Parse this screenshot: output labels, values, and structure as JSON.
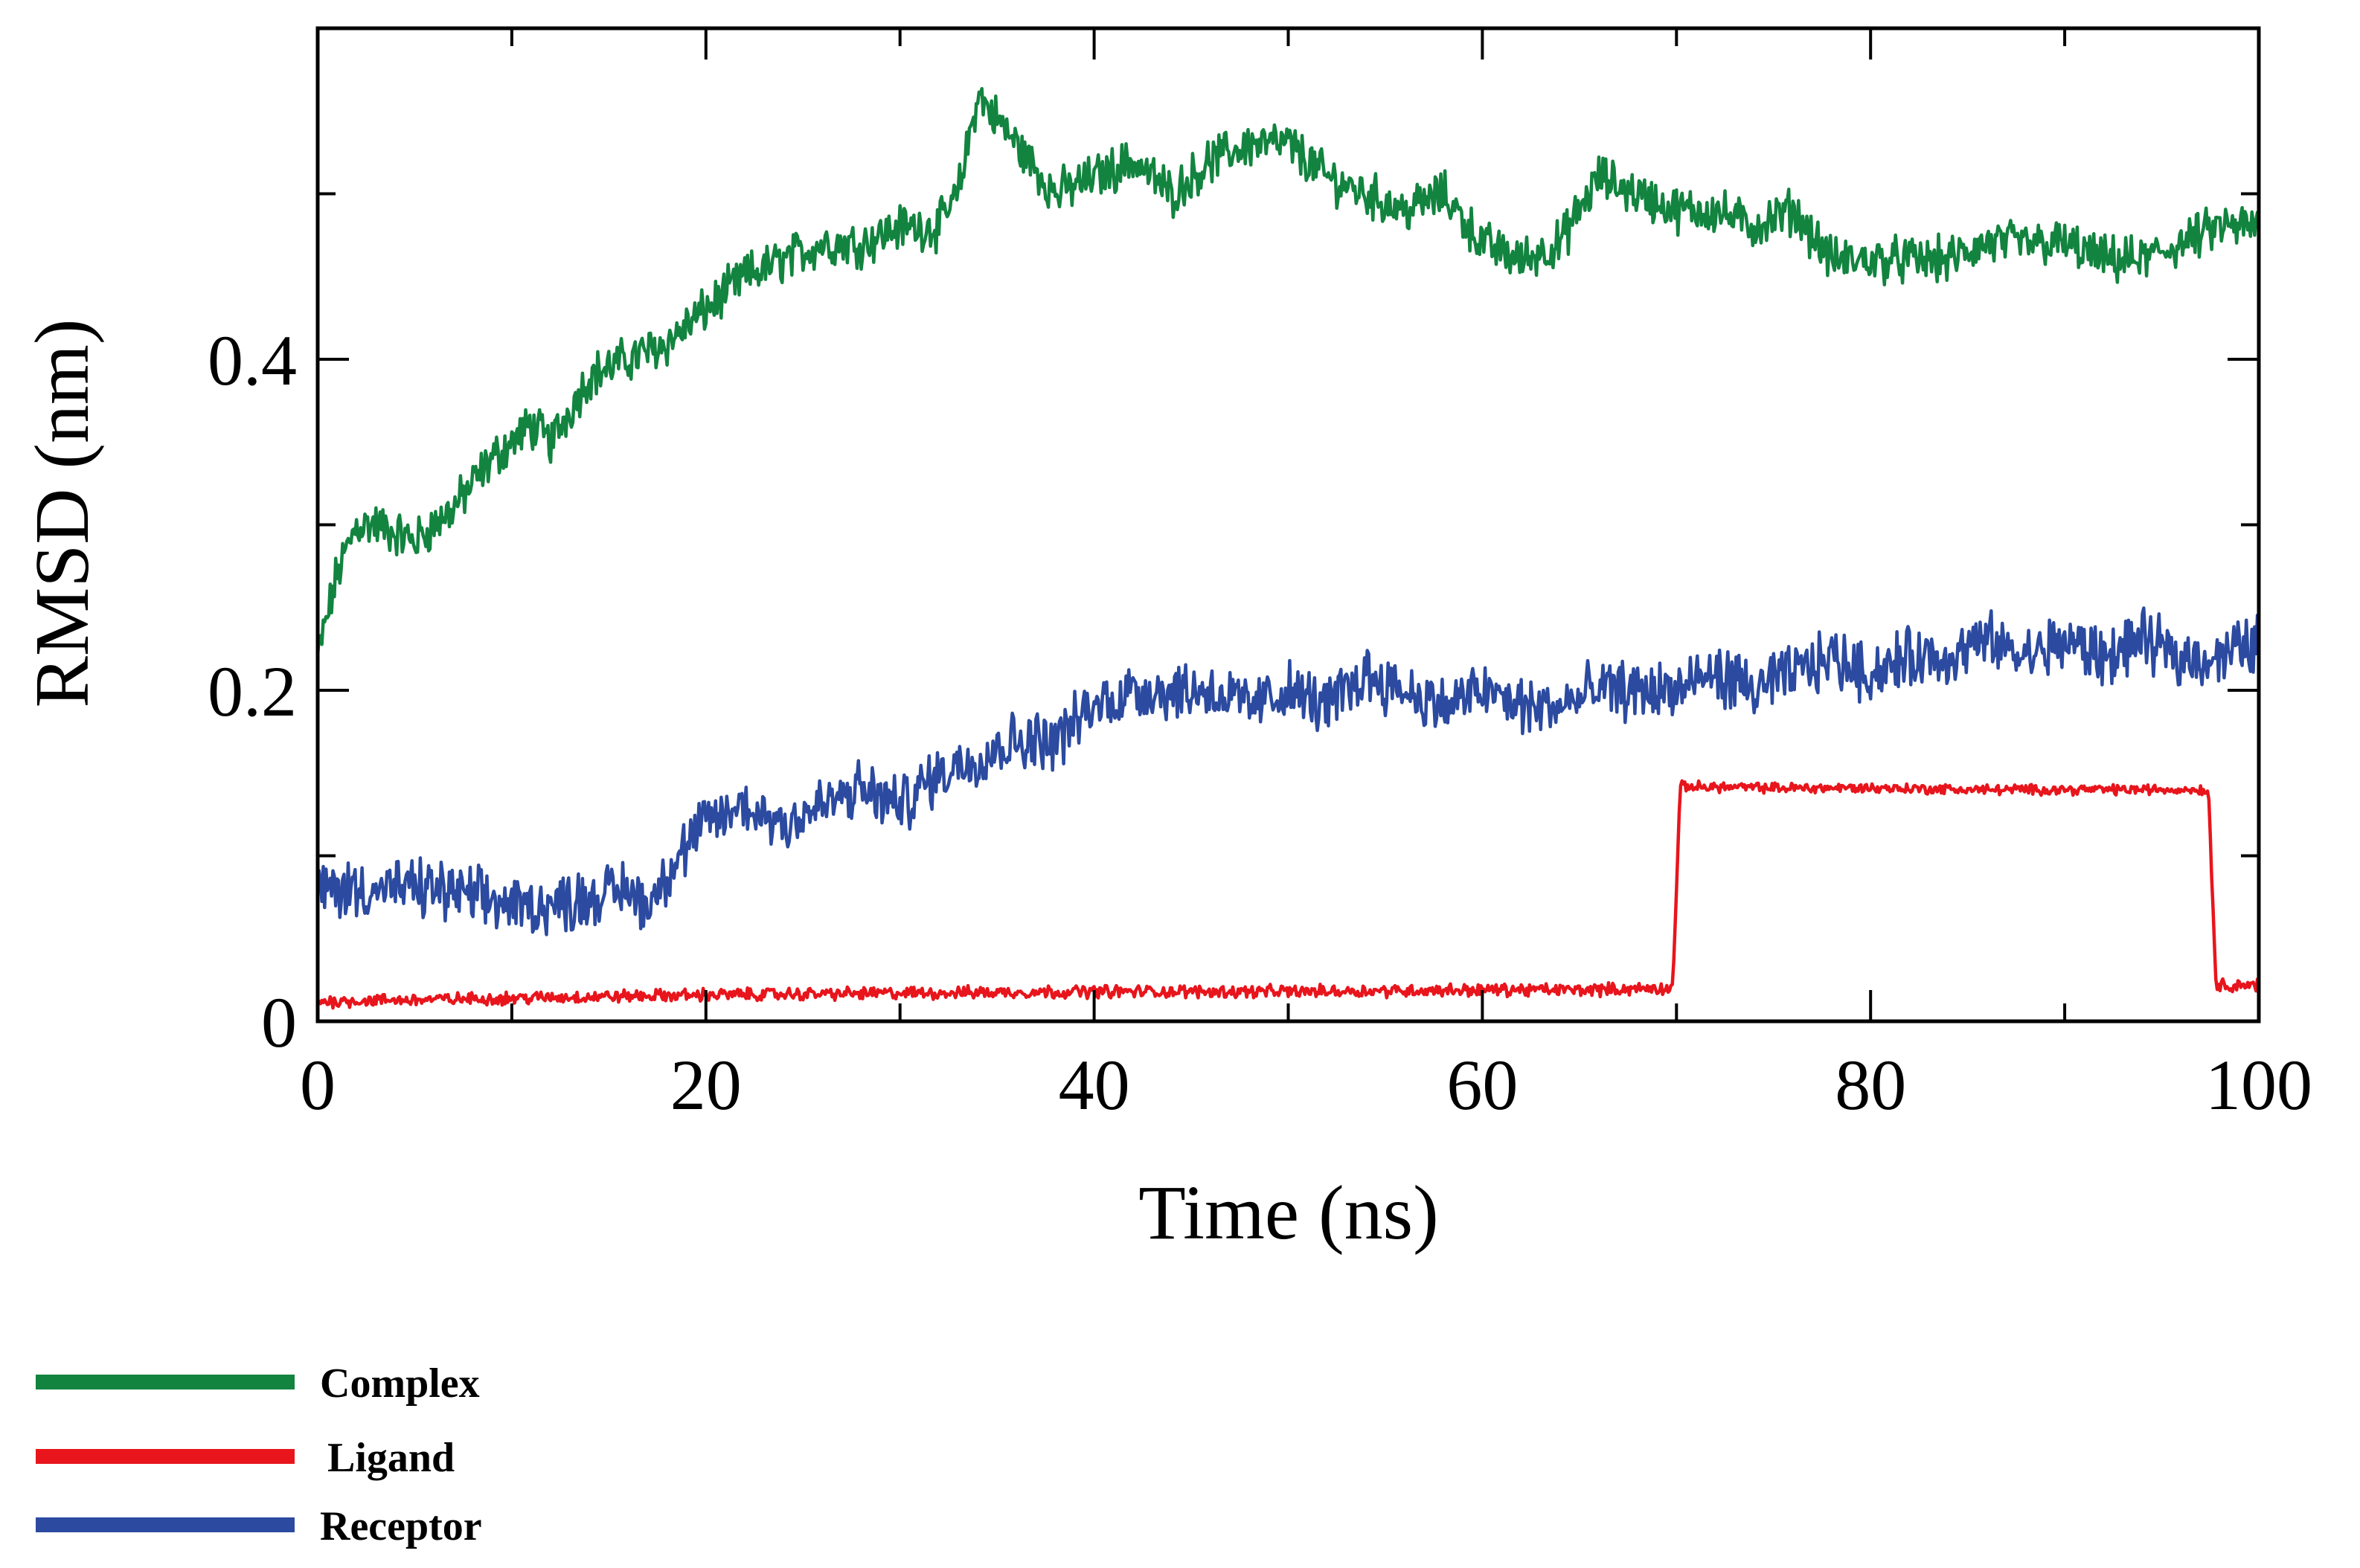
{
  "chart_data": {
    "type": "line",
    "title": "",
    "xlabel": "Time (ns)",
    "ylabel": "RMSD (nm)",
    "xlim": [
      0,
      100
    ],
    "ylim": [
      0,
      0.6
    ],
    "xticks": [
      0,
      20,
      40,
      60,
      80,
      100
    ],
    "xtick_labels": [
      "0",
      "20",
      "40",
      "60",
      "80",
      "100"
    ],
    "yticks": [
      0,
      0.2,
      0.4
    ],
    "ytick_labels": [
      "0",
      "0.2",
      "0.4"
    ],
    "grid": false,
    "legend_position": "bottom-left",
    "series": [
      {
        "name": "Complex",
        "color": "#12843f",
        "noise": 0.022,
        "x": [
          0,
          1,
          2,
          3,
          5,
          7,
          9,
          11,
          12,
          14,
          16,
          18,
          20,
          22,
          24,
          26,
          28,
          30,
          32,
          33,
          34,
          36,
          38,
          40,
          42,
          44,
          46,
          48,
          50,
          52,
          54,
          56,
          58,
          60,
          62,
          64,
          66,
          68,
          70,
          72,
          74,
          76,
          78,
          80,
          82,
          84,
          86,
          88,
          90,
          92,
          94,
          96,
          98,
          100
        ],
        "y": [
          0.22,
          0.27,
          0.3,
          0.3,
          0.29,
          0.31,
          0.34,
          0.36,
          0.35,
          0.39,
          0.4,
          0.41,
          0.43,
          0.45,
          0.46,
          0.47,
          0.47,
          0.48,
          0.48,
          0.5,
          0.56,
          0.53,
          0.5,
          0.51,
          0.52,
          0.5,
          0.52,
          0.53,
          0.53,
          0.51,
          0.5,
          0.49,
          0.5,
          0.47,
          0.46,
          0.47,
          0.51,
          0.5,
          0.49,
          0.49,
          0.48,
          0.49,
          0.46,
          0.46,
          0.46,
          0.46,
          0.47,
          0.47,
          0.47,
          0.46,
          0.46,
          0.47,
          0.48,
          0.48
        ]
      },
      {
        "name": "Ligand",
        "color": "#e8151c",
        "noise": 0.006,
        "x": [
          0,
          10,
          20,
          30,
          40,
          50,
          60,
          65,
          69.8,
          70.2,
          75,
          80,
          85,
          90,
          95,
          97.4,
          97.8,
          100
        ],
        "y": [
          0.012,
          0.014,
          0.016,
          0.017,
          0.018,
          0.018,
          0.019,
          0.019,
          0.02,
          0.142,
          0.141,
          0.141,
          0.14,
          0.14,
          0.14,
          0.14,
          0.022,
          0.022
        ]
      },
      {
        "name": "Receptor",
        "color": "#2b4aa0",
        "noise": 0.028,
        "x": [
          0,
          2,
          4,
          6,
          8,
          10,
          12,
          14,
          16,
          17,
          18,
          20,
          22,
          24,
          26,
          28,
          30,
          32,
          34,
          36,
          38,
          40,
          42,
          44,
          46,
          48,
          50,
          52,
          54,
          56,
          58,
          60,
          62,
          64,
          66,
          68,
          70,
          72,
          74,
          76,
          78,
          80,
          82,
          84,
          86,
          88,
          90,
          92,
          94,
          96,
          98,
          100
        ],
        "y": [
          0.08,
          0.08,
          0.08,
          0.08,
          0.075,
          0.07,
          0.07,
          0.075,
          0.08,
          0.07,
          0.09,
          0.12,
          0.13,
          0.12,
          0.13,
          0.14,
          0.13,
          0.15,
          0.16,
          0.17,
          0.17,
          0.19,
          0.2,
          0.2,
          0.2,
          0.19,
          0.2,
          0.19,
          0.21,
          0.2,
          0.19,
          0.2,
          0.19,
          0.19,
          0.2,
          0.2,
          0.2,
          0.21,
          0.2,
          0.21,
          0.22,
          0.21,
          0.22,
          0.22,
          0.23,
          0.22,
          0.23,
          0.22,
          0.23,
          0.22,
          0.22,
          0.23
        ]
      }
    ]
  }
}
